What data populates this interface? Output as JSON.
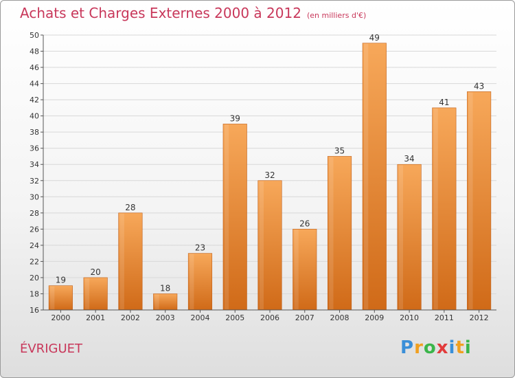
{
  "title": {
    "main": "Achats et Charges Externes 2000 à 2012",
    "unit": "(en milliers d'€)"
  },
  "commune": "ÉVRIGUET",
  "brand": {
    "letters": [
      "P",
      "r",
      "o",
      "x",
      "i",
      "t",
      "i"
    ],
    "colors": [
      "#3a8fd8",
      "#f0a020",
      "#3bb54a",
      "#e23b3b",
      "#3a8fd8",
      "#f0a020",
      "#3bb54a"
    ]
  },
  "colors": {
    "title": "#c8375a",
    "bar_top": "#f7a85a",
    "bar_bottom": "#d06a18",
    "grid": "#d8d8d8",
    "axis": "#555555"
  },
  "chart_data": {
    "type": "bar",
    "categories": [
      "2000",
      "2001",
      "2002",
      "2003",
      "2004",
      "2005",
      "2006",
      "2007",
      "2008",
      "2009",
      "2010",
      "2011",
      "2012"
    ],
    "values": [
      19,
      20,
      28,
      18,
      23,
      39,
      32,
      26,
      35,
      49,
      34,
      41,
      43
    ],
    "ylim": [
      16,
      50
    ],
    "yticks": [
      16,
      18,
      20,
      22,
      24,
      26,
      28,
      30,
      32,
      34,
      36,
      38,
      40,
      42,
      44,
      46,
      48,
      50
    ],
    "grid": true,
    "data_labels": true
  }
}
